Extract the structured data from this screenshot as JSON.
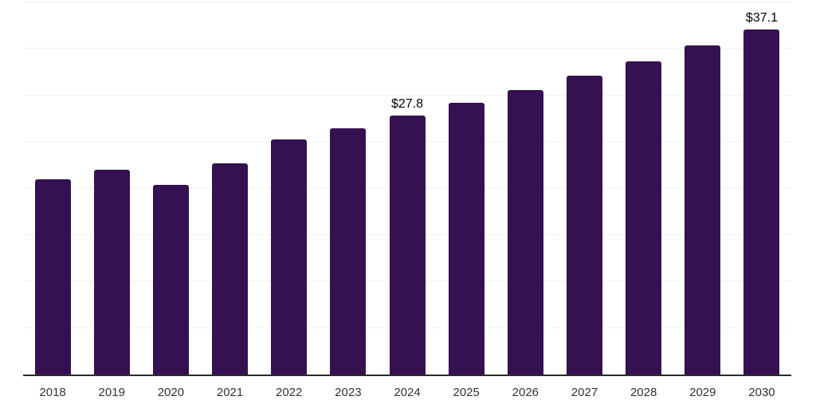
{
  "chart_data": {
    "type": "bar",
    "categories": [
      "2018",
      "2019",
      "2020",
      "2021",
      "2022",
      "2023",
      "2024",
      "2025",
      "2026",
      "2027",
      "2028",
      "2029",
      "2030"
    ],
    "values": [
      21.0,
      22.0,
      20.4,
      22.7,
      25.3,
      26.5,
      27.8,
      29.2,
      30.6,
      32.1,
      33.7,
      35.4,
      37.1
    ],
    "data_labels": [
      "",
      "",
      "",
      "",
      "",
      "",
      "$27.8",
      "",
      "",
      "",
      "",
      "",
      "$37.1"
    ],
    "title": "",
    "xlabel": "",
    "ylabel": "",
    "ylim": [
      0,
      40
    ],
    "grid_step": 5,
    "grid": "horizontal",
    "legend": "none",
    "bar_color": "#361151",
    "axis_color": "#2b2b2b",
    "gridline_color": "#f2f2f2",
    "value_label_color": "#000000",
    "tick_label_color": "#333333"
  }
}
